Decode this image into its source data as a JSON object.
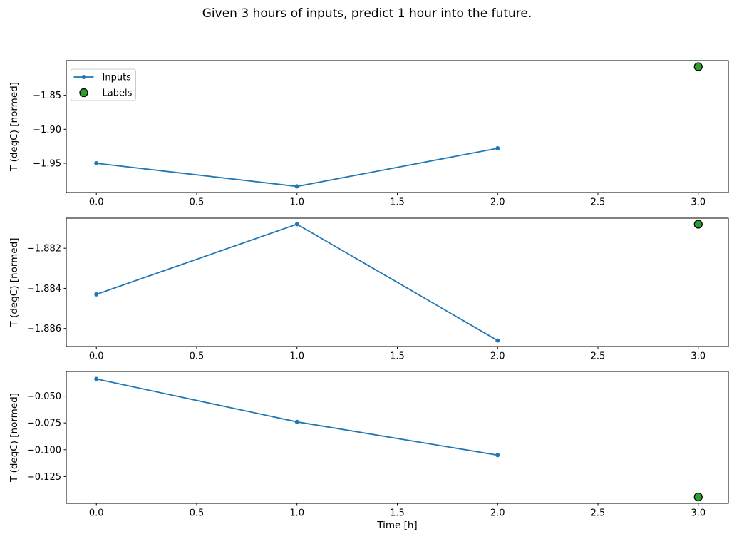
{
  "title": "Given 3 hours of inputs, predict 1 hour into the future.",
  "xlabel": "Time [h]",
  "colors": {
    "inputs_line": "#1f77b4",
    "labels_fill": "#2ca02c",
    "labels_edge": "#000000",
    "spine": "#000000",
    "text": "#000000",
    "legend_border": "#cccccc",
    "background": "#ffffff"
  },
  "legend": {
    "entries": [
      "Inputs",
      "Labels"
    ],
    "position": "upper left"
  },
  "chart_data": [
    {
      "type": "line",
      "ylabel": "T (degC) [normed]",
      "xlim": [
        -0.15,
        3.15
      ],
      "ylim": [
        -1.993,
        -1.799
      ],
      "xticks": {
        "values": [
          0.0,
          0.5,
          1.0,
          1.5,
          2.0,
          2.5,
          3.0
        ],
        "labels": [
          "0.0",
          "0.5",
          "1.0",
          "1.5",
          "2.0",
          "2.5",
          "3.0"
        ]
      },
      "yticks": {
        "values": [
          -1.85,
          -1.9,
          -1.95
        ],
        "labels": [
          "−1.85",
          "−1.90",
          "−1.95"
        ]
      },
      "series": [
        {
          "name": "Inputs",
          "type": "line",
          "x": [
            0,
            1,
            2
          ],
          "y": [
            -1.95,
            -1.984,
            -1.928
          ]
        },
        {
          "name": "Labels",
          "type": "scatter",
          "x": [
            3
          ],
          "y": [
            -1.808
          ]
        }
      ],
      "legend": true
    },
    {
      "type": "line",
      "ylabel": "T (degC) [normed]",
      "xlim": [
        -0.15,
        3.15
      ],
      "ylim": [
        -1.8869,
        -1.8805
      ],
      "xticks": {
        "values": [
          0.0,
          0.5,
          1.0,
          1.5,
          2.0,
          2.5,
          3.0
        ],
        "labels": [
          "0.0",
          "0.5",
          "1.0",
          "1.5",
          "2.0",
          "2.5",
          "3.0"
        ]
      },
      "yticks": {
        "values": [
          -1.882,
          -1.884,
          -1.886
        ],
        "labels": [
          "−1.882",
          "−1.884",
          "−1.886"
        ]
      },
      "series": [
        {
          "name": "Inputs",
          "type": "line",
          "x": [
            0,
            1,
            2
          ],
          "y": [
            -1.8843,
            -1.8808,
            -1.8866
          ]
        },
        {
          "name": "Labels",
          "type": "scatter",
          "x": [
            3
          ],
          "y": [
            -1.8808
          ]
        }
      ],
      "legend": false
    },
    {
      "type": "line",
      "ylabel": "T (degC) [normed]",
      "xlim": [
        -0.15,
        3.15
      ],
      "ylim": [
        -0.15,
        -0.027
      ],
      "xticks": {
        "values": [
          0.0,
          0.5,
          1.0,
          1.5,
          2.0,
          2.5,
          3.0
        ],
        "labels": [
          "0.0",
          "0.5",
          "1.0",
          "1.5",
          "2.0",
          "2.5",
          "3.0"
        ]
      },
      "yticks": {
        "values": [
          -0.05,
          -0.075,
          -0.1,
          -0.125
        ],
        "labels": [
          "−0.050",
          "−0.075",
          "−0.100",
          "−0.125"
        ]
      },
      "series": [
        {
          "name": "Inputs",
          "type": "line",
          "x": [
            0,
            1,
            2
          ],
          "y": [
            -0.034,
            -0.074,
            -0.105
          ]
        },
        {
          "name": "Labels",
          "type": "scatter",
          "x": [
            3
          ],
          "y": [
            -0.144
          ]
        }
      ],
      "legend": false
    }
  ]
}
